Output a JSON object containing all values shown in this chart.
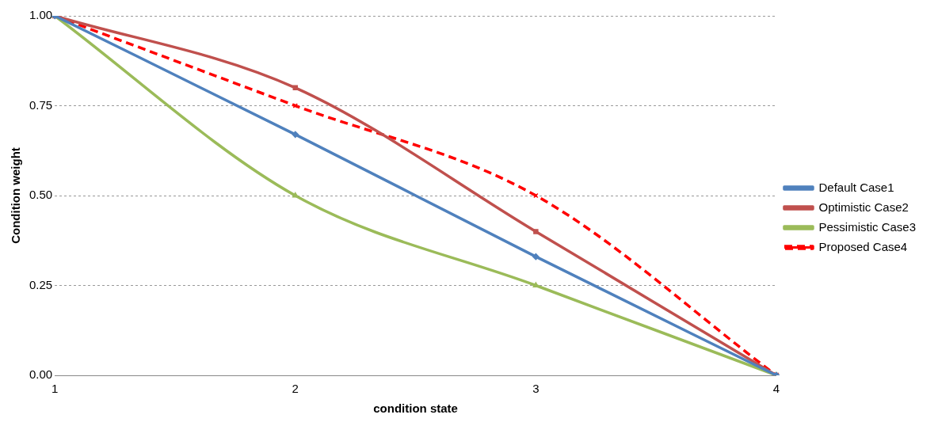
{
  "chart_data": {
    "type": "line",
    "xlabel": "condition state",
    "ylabel": "Condition weight",
    "categories": [
      "1",
      "2",
      "3",
      "4"
    ],
    "series": [
      {
        "name": "Default Case1",
        "color": "#4f81bd",
        "values": [
          1,
          0.67,
          0.33,
          0
        ],
        "marker": "diamond",
        "line_style": "solid"
      },
      {
        "name": "Optimistic Case2",
        "color": "#c0504d",
        "values": [
          1,
          0.8,
          0.4,
          0
        ],
        "marker": "square",
        "line_style": "solid"
      },
      {
        "name": "Pessimistic Case3",
        "color": "#9bbb59",
        "values": [
          1,
          0.5,
          0.25,
          0
        ],
        "marker": "triangle",
        "line_style": "solid"
      },
      {
        "name": "Proposed Case4",
        "color": "#ff0000",
        "values": [
          1,
          0.75,
          0.5,
          0
        ],
        "marker": "cross",
        "line_style": "dashed"
      }
    ],
    "ylim": [
      0,
      1
    ],
    "yticks": [
      {
        "value": 0,
        "label": "0.00"
      },
      {
        "value": 0.25,
        "label": "0.25"
      },
      {
        "value": 0.5,
        "label": "0.50"
      },
      {
        "value": 0.75,
        "label": "0.75"
      },
      {
        "value": 1,
        "label": "1.00"
      }
    ],
    "grid": "y",
    "legend": "right"
  }
}
